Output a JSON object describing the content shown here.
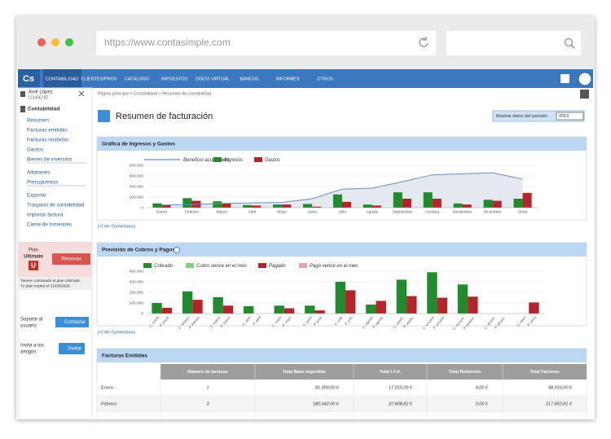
{
  "browser": {
    "url": "https://www.contasimple.com"
  },
  "nav": {
    "logo": "Cs",
    "items": [
      "CONTABILIDAD",
      "CLIENTES/PROV.",
      "CATÁLOGO",
      "IMPUESTOS",
      "DISCO VIRTUAL",
      "BANCOS",
      "INFORMES",
      "OTROS"
    ]
  },
  "sidebar": {
    "user": {
      "name": "José López",
      "id": "12345678Z"
    },
    "section": "Contabilidad",
    "links": [
      [
        "Resumen",
        "Facturas emitidas",
        "Facturas recibidas",
        "Gastos",
        "Bienes de inversión"
      ],
      [
        "Albaranes",
        "Presupuestos"
      ],
      [
        "Exportar",
        "Traspaso de contabilidad",
        "Importar factura",
        "Cierre de trimestres"
      ]
    ],
    "plan": {
      "label": "Plan",
      "name": "Ultimate",
      "badge": "U",
      "button": "Renovar",
      "note": [
        "Tienes contratado el plan Ultimate.",
        "Tu plan expira el 21/08/2025."
      ]
    },
    "support": {
      "label": [
        "Soporte al",
        "usuario"
      ],
      "button": "Contactar"
    },
    "invite": {
      "label": [
        "Invita a tus",
        "amigos"
      ],
      "button": "Invitar"
    }
  },
  "breadcrumb": "Página principal > Contabilidad > Resumen de contabilidad",
  "title": "Resumen de facturación",
  "period": {
    "label": "Mostrar datos del período",
    "value": "2019"
  },
  "charts": [
    {
      "type": "bar",
      "title": "Gráfica de Ingresos y Gastos",
      "categories": [
        "Enero",
        "Febrero",
        "Marzo",
        "Abril",
        "Mayo",
        "Junio",
        "Julio",
        "Agosto",
        "Septiembre",
        "Octubre",
        "Noviembre",
        "Diciembre",
        "Otros"
      ],
      "series": [
        {
          "name": "Beneficio acumulado",
          "type": "line",
          "color": "#6f8db8",
          "values": [
            50000,
            60000,
            80000,
            90000,
            100000,
            170000,
            350000,
            370000,
            490000,
            620000,
            640000,
            660000,
            540000
          ]
        },
        {
          "name": "Ingresos",
          "color": "#1f8b2c",
          "values": [
            81000,
            180042,
            120000,
            50000,
            60000,
            70000,
            250000,
            60000,
            290000,
            290000,
            80000,
            150000,
            170000
          ]
        },
        {
          "name": "Gastos",
          "color": "#b3242b",
          "values": [
            50000,
            130000,
            80000,
            40000,
            60000,
            20000,
            110000,
            40000,
            170000,
            170000,
            60000,
            130000,
            280000
          ]
        }
      ],
      "ylim": [
        0,
        800000
      ],
      "yticks": [
        0,
        {
          "value": 200000,
          "label": "200.000"
        },
        {
          "value": 400000,
          "label": "400.000"
        },
        {
          "value": 600000,
          "label": "600.000"
        },
        {
          "value": 800000,
          "label": "800.000"
        }
      ],
      "grid": true,
      "comments": "[+] Ver Comentarios"
    },
    {
      "type": "bar",
      "title": "Previsión de Cobros y Pagos",
      "x_labels": [
        "C. enero",
        "P. enero",
        "C. febrero",
        "P. febrero",
        "C. marzo",
        "P. marzo",
        "C. abril",
        "P. abril",
        "C. mayo",
        "P. mayo",
        "C. junio",
        "P. junio",
        "C. julio",
        "P. julio",
        "C. agosto",
        "P. agosto",
        "C. septie.",
        "P. septie.",
        "C. octubre",
        "P. octubre",
        "C. noviem.",
        "P. noviem.",
        "C. diciem.",
        "P. diciem.",
        "C. otros",
        "P. otros"
      ],
      "series": [
        {
          "name": "Cobrado",
          "color": "#1f8b2c",
          "values": [
            100000,
            210000,
            155000,
            70000,
            75000,
            75000,
            300000,
            85000,
            320000,
            390000,
            275000,
            0,
            0
          ]
        },
        {
          "name": "Cobro vence en el mes",
          "color": "#7fd67f"
        },
        {
          "name": "Pagado",
          "color": "#b3242b",
          "values": [
            55000,
            130000,
            75000,
            0,
            50000,
            30000,
            220000,
            120000,
            165000,
            150000,
            160000,
            0,
            105000
          ]
        },
        {
          "name": "Pago vence en el mes",
          "color": "#e8a2aa"
        }
      ],
      "ylim": [
        0,
        400000
      ],
      "yticks": [
        0,
        {
          "value": 100000,
          "label": "100.000"
        },
        {
          "value": 200000,
          "label": "200.000"
        },
        {
          "value": 300000,
          "label": "300.000"
        },
        {
          "value": 400000,
          "label": "400.000"
        }
      ],
      "grid": true,
      "comments": "[+] Ver Comentarios"
    }
  ],
  "table": {
    "title": "Facturas Emitidas",
    "columns": [
      "Número de facturas",
      "Total Base Imponible",
      "Total I.V.A.",
      "Total Retención",
      "Total Facturas"
    ],
    "rows": [
      [
        "Enero",
        1,
        "81.000,00 €",
        "17.010,00 €",
        "0,00 €",
        "98.010,00 €"
      ],
      [
        "Febrero",
        3,
        "180.042,00 €",
        "37.808,82 €",
        "0,00 €",
        "217.850,81 €"
      ]
    ]
  }
}
